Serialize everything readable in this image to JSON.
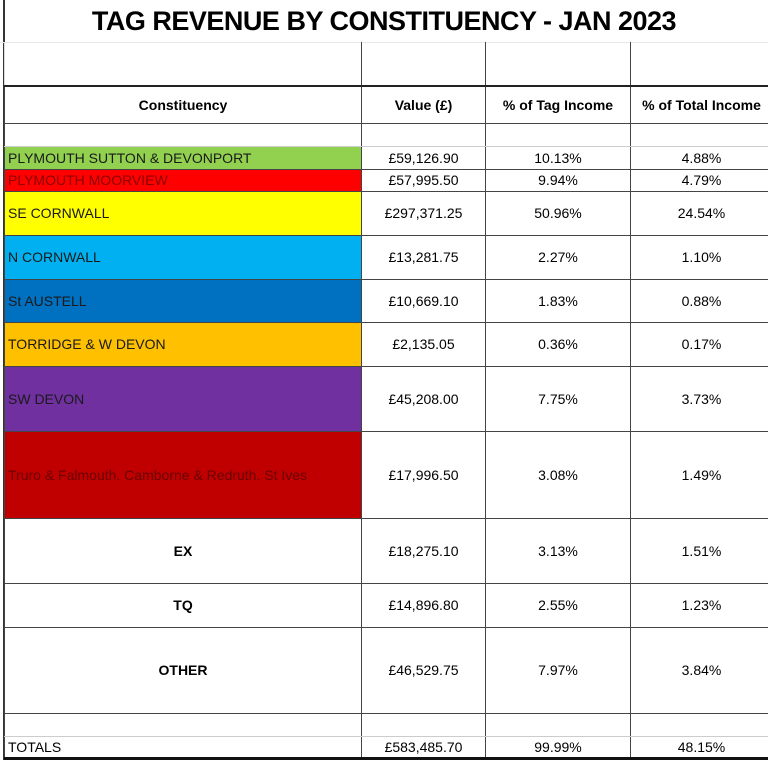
{
  "title": "TAG REVENUE BY CONSTITUENCY - JAN 2023",
  "headers": [
    "Constituency",
    "Value (£)",
    "% of Tag Income",
    "% of Total Income"
  ],
  "rows": [
    {
      "name": "PLYMOUTH SUTTON & DEVONPORT",
      "value": "£59,126.90",
      "tag_pct": "10.13%",
      "total_pct": "4.88%",
      "color": "#92d050",
      "text_color": "#1a1a1a"
    },
    {
      "name": "PLYMOUTH MOORVIEW",
      "value": "£57,995.50",
      "tag_pct": "9.94%",
      "total_pct": "4.79%",
      "color": "#ff0000",
      "text_color": "#8b0000"
    },
    {
      "name": "SE CORNWALL",
      "value": "£297,371.25",
      "tag_pct": "50.96%",
      "total_pct": "24.54%",
      "color": "#ffff00",
      "text_color": "#1a1a1a"
    },
    {
      "name": "N CORNWALL",
      "value": "£13,281.75",
      "tag_pct": "2.27%",
      "total_pct": "1.10%",
      "color": "#00b0f0",
      "text_color": "#1a1a1a"
    },
    {
      "name": "St AUSTELL",
      "value": "£10,669.10",
      "tag_pct": "1.83%",
      "total_pct": "0.88%",
      "color": "#0070c0",
      "text_color": "#1a1a1a"
    },
    {
      "name": "TORRIDGE & W DEVON",
      "value": "£2,135.05",
      "tag_pct": "0.36%",
      "total_pct": "0.17%",
      "color": "#ffc000",
      "text_color": "#1a1a1a"
    },
    {
      "name": "SW DEVON",
      "value": "£45,208.00",
      "tag_pct": "7.75%",
      "total_pct": "3.73%",
      "color": "#7030a0",
      "text_color": "#1a1a1a"
    },
    {
      "name": "Truro & Falmouth. Camborne & Redruth. St Ives",
      "value": "£17,996.50",
      "tag_pct": "3.08%",
      "total_pct": "1.49%",
      "color": "#c00000",
      "text_color": "#6a0000"
    },
    {
      "name": "EX",
      "value": "£18,275.10",
      "tag_pct": "3.13%",
      "total_pct": "1.51%",
      "color": "#ffffff",
      "text_color": "#000000"
    },
    {
      "name": "TQ",
      "value": "£14,896.80",
      "tag_pct": "2.55%",
      "total_pct": "1.23%",
      "color": "#ffffff",
      "text_color": "#000000"
    },
    {
      "name": "OTHER",
      "value": "£46,529.75",
      "tag_pct": "7.97%",
      "total_pct": "3.84%",
      "color": "#ffffff",
      "text_color": "#000000"
    }
  ],
  "totals": {
    "label": "TOTALS",
    "value": "£583,485.70",
    "tag_pct": "99.99%",
    "total_pct": "48.15%"
  }
}
